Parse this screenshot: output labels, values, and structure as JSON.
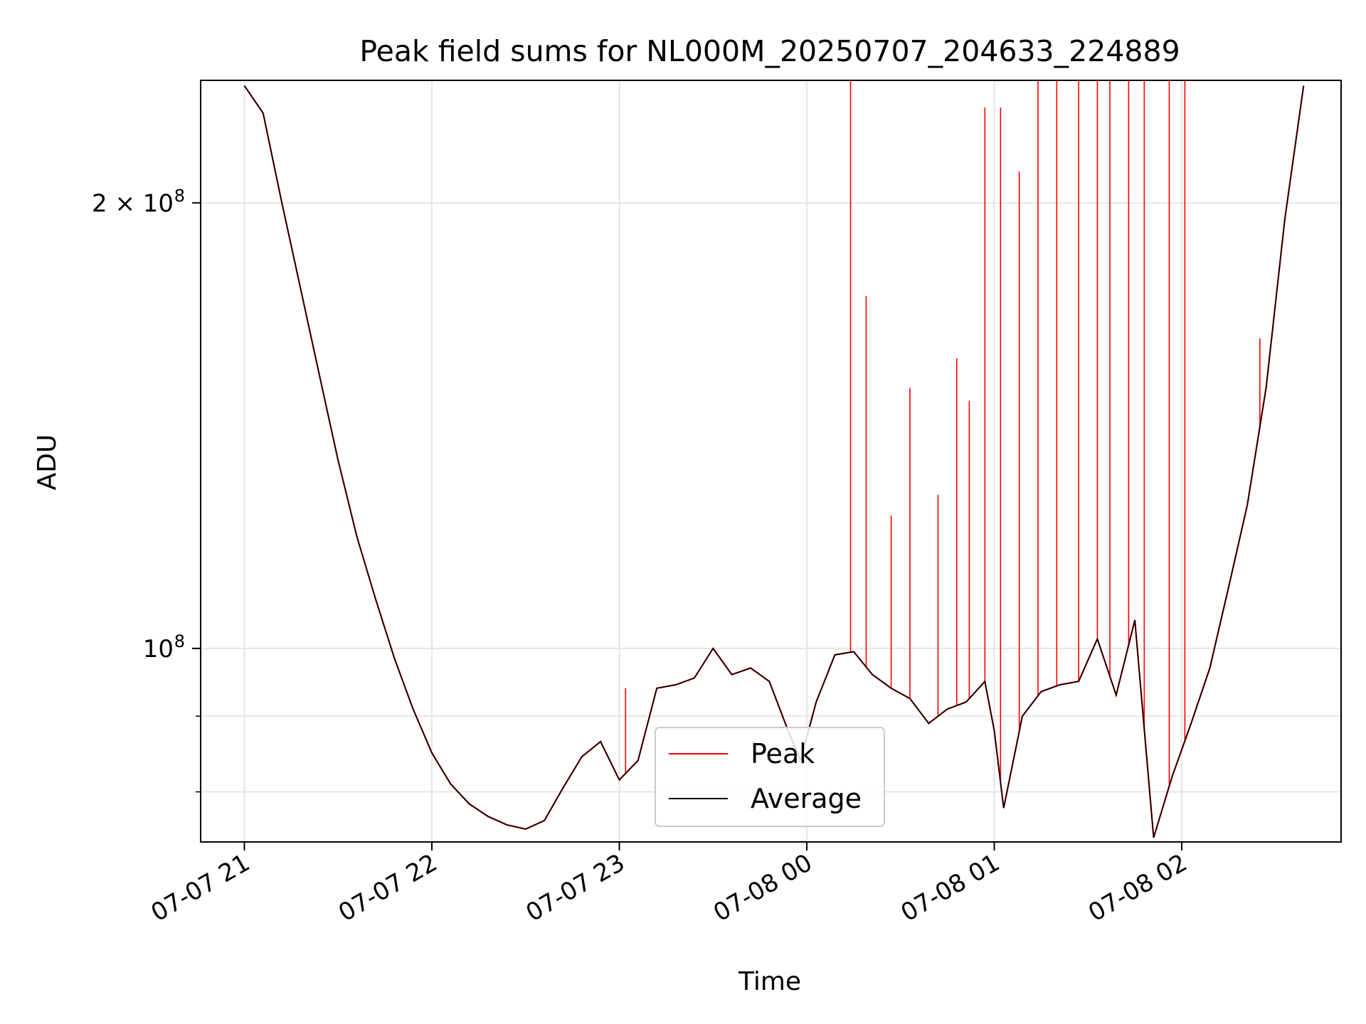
{
  "chart_data": {
    "type": "line",
    "title": "Peak field sums for NL000M_20250707_204633_224889",
    "xlabel": "Time",
    "ylabel": "ADU",
    "y_scale": "log",
    "ylim": [
      74000000,
      242000000
    ],
    "xlim": [
      "2025-07-07 20:46",
      "2025-07-08 02:51"
    ],
    "grid": true,
    "legend_position": "lower-center",
    "x_ticks": [
      {
        "label": "07-07 21",
        "value": "2025-07-07 21:00"
      },
      {
        "label": "07-07 22",
        "value": "2025-07-07 22:00"
      },
      {
        "label": "07-07 23",
        "value": "2025-07-07 23:00"
      },
      {
        "label": "07-08 00",
        "value": "2025-07-08 00:00"
      },
      {
        "label": "07-08 01",
        "value": "2025-07-08 01:00"
      },
      {
        "label": "07-08 02",
        "value": "2025-07-08 02:00"
      }
    ],
    "y_ticks": [
      {
        "base": "2 × 10",
        "exp": "8",
        "value": 200000000
      },
      {
        "base": "10",
        "exp": "8",
        "value": 100000000
      }
    ],
    "series": [
      {
        "name": "Average",
        "color": "#000000",
        "points": [
          [
            "2025-07-07 21:00",
            240000000
          ],
          [
            "2025-07-07 21:06",
            230000000
          ],
          [
            "2025-07-07 21:12",
            200000000
          ],
          [
            "2025-07-07 21:18",
            175000000
          ],
          [
            "2025-07-07 21:24",
            153000000
          ],
          [
            "2025-07-07 21:30",
            134000000
          ],
          [
            "2025-07-07 21:36",
            119000000
          ],
          [
            "2025-07-07 21:42",
            108000000
          ],
          [
            "2025-07-07 21:48",
            98500000
          ],
          [
            "2025-07-07 21:54",
            91000000
          ],
          [
            "2025-07-07 22:00",
            85000000
          ],
          [
            "2025-07-07 22:06",
            81000000
          ],
          [
            "2025-07-07 22:12",
            78500000
          ],
          [
            "2025-07-07 22:18",
            77000000
          ],
          [
            "2025-07-07 22:24",
            76000000
          ],
          [
            "2025-07-07 22:30",
            75500000
          ],
          [
            "2025-07-07 22:36",
            76500000
          ],
          [
            "2025-07-07 22:42",
            80500000
          ],
          [
            "2025-07-07 22:48",
            84500000
          ],
          [
            "2025-07-07 22:54",
            86500000
          ],
          [
            "2025-07-07 23:00",
            81500000
          ],
          [
            "2025-07-07 23:06",
            84000000
          ],
          [
            "2025-07-07 23:12",
            94000000
          ],
          [
            "2025-07-07 23:18",
            94500000
          ],
          [
            "2025-07-07 23:24",
            95500000
          ],
          [
            "2025-07-07 23:30",
            100000000
          ],
          [
            "2025-07-07 23:36",
            96000000
          ],
          [
            "2025-07-07 23:42",
            97000000
          ],
          [
            "2025-07-07 23:48",
            95000000
          ],
          [
            "2025-07-07 23:54",
            88000000
          ],
          [
            "2025-07-07 23:58",
            84000000
          ],
          [
            "2025-07-08 00:03",
            92000000
          ],
          [
            "2025-07-08 00:09",
            99000000
          ],
          [
            "2025-07-08 00:15",
            99500000
          ],
          [
            "2025-07-08 00:21",
            96000000
          ],
          [
            "2025-07-08 00:27",
            94000000
          ],
          [
            "2025-07-08 00:33",
            92500000
          ],
          [
            "2025-07-08 00:39",
            89000000
          ],
          [
            "2025-07-08 00:45",
            91000000
          ],
          [
            "2025-07-08 00:51",
            92000000
          ],
          [
            "2025-07-08 00:57",
            95000000
          ],
          [
            "2025-07-08 01:00",
            88000000
          ],
          [
            "2025-07-08 01:03",
            78000000
          ],
          [
            "2025-07-08 01:09",
            90000000
          ],
          [
            "2025-07-08 01:15",
            93500000
          ],
          [
            "2025-07-08 01:21",
            94500000
          ],
          [
            "2025-07-08 01:27",
            95000000
          ],
          [
            "2025-07-08 01:33",
            101500000
          ],
          [
            "2025-07-08 01:39",
            93000000
          ],
          [
            "2025-07-08 01:45",
            104500000
          ],
          [
            "2025-07-08 01:51",
            74500000
          ],
          [
            "2025-07-08 01:57",
            82000000
          ],
          [
            "2025-07-08 02:03",
            89000000
          ],
          [
            "2025-07-08 02:09",
            97000000
          ],
          [
            "2025-07-08 02:15",
            110000000
          ],
          [
            "2025-07-08 02:21",
            125000000
          ],
          [
            "2025-07-08 02:27",
            150000000
          ],
          [
            "2025-07-08 02:33",
            195000000
          ],
          [
            "2025-07-08 02:39",
            240000000
          ]
        ]
      },
      {
        "name": "Peak",
        "color": "#ff0000",
        "points": [
          [
            "2025-07-07 23:02",
            94000000
          ],
          [
            "2025-07-08 00:14",
            243000000
          ],
          [
            "2025-07-08 00:19",
            173000000
          ],
          [
            "2025-07-08 00:27",
            123000000
          ],
          [
            "2025-07-08 00:33",
            150000000
          ],
          [
            "2025-07-08 00:42",
            127000000
          ],
          [
            "2025-07-08 00:48",
            157000000
          ],
          [
            "2025-07-08 00:52",
            147000000
          ],
          [
            "2025-07-08 00:57",
            232000000
          ],
          [
            "2025-07-08 01:02",
            232000000
          ],
          [
            "2025-07-08 01:08",
            210000000
          ],
          [
            "2025-07-08 01:14",
            242000000
          ],
          [
            "2025-07-08 01:20",
            242000000
          ],
          [
            "2025-07-08 01:27",
            242000000
          ],
          [
            "2025-07-08 01:33",
            242000000
          ],
          [
            "2025-07-08 01:37",
            242000000
          ],
          [
            "2025-07-08 01:43",
            242000000
          ],
          [
            "2025-07-08 01:48",
            242000000
          ],
          [
            "2025-07-08 01:56",
            242000000
          ],
          [
            "2025-07-08 02:01",
            242000000
          ],
          [
            "2025-07-08 02:25",
            162000000
          ]
        ]
      }
    ]
  }
}
